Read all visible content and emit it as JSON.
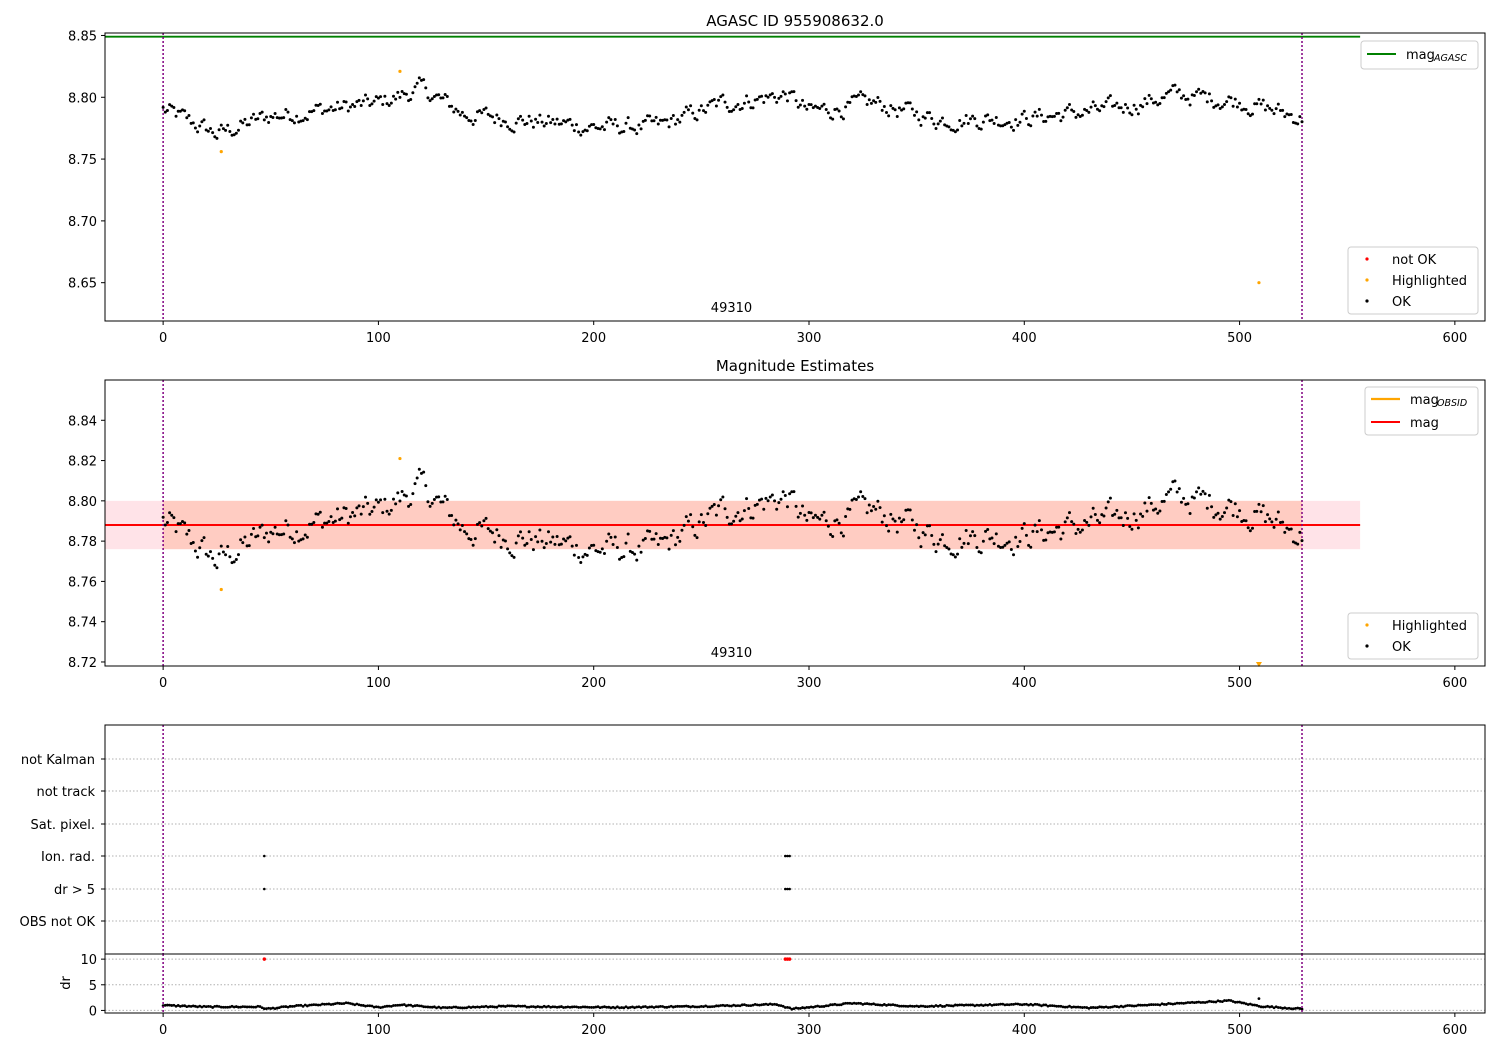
{
  "colors": {
    "ok": "#000000",
    "highlighted": "#ffa500",
    "not_ok": "#ff0000",
    "agasc_line": "#008000",
    "mag_line": "#ff0000",
    "mag_obsid_line": "#ffa500",
    "band_fill": "#ffc0cb",
    "band_fill_inner": "#ffa07a",
    "obs_boundary": "#800080"
  },
  "chart_data": [
    {
      "type": "scatter",
      "title": "AGASC ID 955908632.0",
      "xlim": [
        -27,
        614
      ],
      "ylim": [
        8.619,
        8.852
      ],
      "xticks": [
        0,
        100,
        200,
        300,
        400,
        500,
        600
      ],
      "yticks": [
        8.65,
        8.7,
        8.75,
        8.8,
        8.85
      ],
      "xtick_labels": [
        "0",
        "100",
        "200",
        "300",
        "400",
        "500",
        "600"
      ],
      "ytick_labels": [
        "8.65",
        "8.70",
        "8.75",
        "8.80",
        "8.85"
      ],
      "obs_boundaries": [
        0,
        529
      ],
      "obsid_label": "49310",
      "obsid_label_x": 264,
      "mag_agasc": 8.849,
      "mag_agasc_xrange": [
        -27,
        556
      ],
      "legends": {
        "lines": [
          "mag",
          "AGASC"
        ],
        "points": [
          "not OK",
          "Highlighted",
          "OK"
        ]
      },
      "highlighted": [
        [
          27,
          8.756
        ],
        [
          110,
          8.821
        ],
        [
          509,
          8.65
        ]
      ],
      "ok_envelope": [
        [
          0,
          8.79
        ],
        [
          25,
          8.77
        ],
        [
          50,
          8.785
        ],
        [
          100,
          8.795
        ],
        [
          120,
          8.807
        ],
        [
          140,
          8.786
        ],
        [
          200,
          8.776
        ],
        [
          230,
          8.776
        ],
        [
          260,
          8.795
        ],
        [
          290,
          8.802
        ],
        [
          300,
          8.788
        ],
        [
          330,
          8.795
        ],
        [
          360,
          8.782
        ],
        [
          400,
          8.783
        ],
        [
          440,
          8.79
        ],
        [
          470,
          8.802
        ],
        [
          500,
          8.797
        ],
        [
          529,
          8.783
        ]
      ]
    },
    {
      "type": "scatter",
      "title": "Magnitude Estimates",
      "xlim": [
        -27,
        614
      ],
      "ylim": [
        8.718,
        8.86
      ],
      "xticks": [
        0,
        100,
        200,
        300,
        400,
        500,
        600
      ],
      "yticks": [
        8.72,
        8.74,
        8.76,
        8.78,
        8.8,
        8.82,
        8.84
      ],
      "xtick_labels": [
        "0",
        "100",
        "200",
        "300",
        "400",
        "500",
        "600"
      ],
      "ytick_labels": [
        "8.72",
        "8.74",
        "8.76",
        "8.78",
        "8.80",
        "8.82",
        "8.84"
      ],
      "obs_boundaries": [
        0,
        529
      ],
      "obsid_label": "49310",
      "obsid_label_x": 264,
      "mag": 8.788,
      "mag_band": [
        8.776,
        8.8
      ],
      "mag_band_xrange": [
        -27,
        556
      ],
      "legends": {
        "lines": [
          [
            "mag",
            "OBSID"
          ],
          [
            "mag",
            ""
          ]
        ],
        "points": [
          "Highlighted",
          "OK"
        ]
      },
      "highlighted": [
        [
          27,
          8.756
        ],
        [
          110,
          8.821
        ]
      ],
      "highlighted_offscale": [
        [
          509,
          8.719
        ]
      ]
    },
    {
      "type": "scatter",
      "title": "",
      "xlim": [
        -27,
        614
      ],
      "categories": [
        "not Kalman",
        "not track",
        "Sat. pixel.",
        "Ion. rad.",
        "dr > 5",
        "OBS not OK"
      ],
      "flags": {
        "Ion. rad.": [
          47,
          289,
          290,
          291
        ],
        "dr > 5": [
          47,
          289,
          290,
          291
        ]
      },
      "obs_boundaries": [
        0,
        529
      ]
    },
    {
      "type": "scatter",
      "title": "",
      "ylabel": "dr",
      "xlim": [
        -27,
        614
      ],
      "ylim": [
        -0.5,
        11
      ],
      "yticks": [
        0,
        5,
        10
      ],
      "ytick_labels": [
        "0",
        "5",
        "10"
      ],
      "xticks": [
        0,
        100,
        200,
        300,
        400,
        500,
        600
      ],
      "xtick_labels": [
        "0",
        "100",
        "200",
        "300",
        "400",
        "500",
        "600"
      ],
      "not_ok_markers": [
        47,
        289,
        290,
        291
      ],
      "not_ok_value": 10,
      "dr_envelope": [
        [
          0,
          1.0
        ],
        [
          20,
          0.7
        ],
        [
          45,
          0.7
        ],
        [
          48,
          0.3
        ],
        [
          60,
          0.8
        ],
        [
          85,
          1.4
        ],
        [
          100,
          0.6
        ],
        [
          110,
          1.1
        ],
        [
          130,
          0.5
        ],
        [
          160,
          0.8
        ],
        [
          210,
          0.6
        ],
        [
          250,
          0.8
        ],
        [
          285,
          1.2
        ],
        [
          292,
          0.3
        ],
        [
          320,
          1.4
        ],
        [
          350,
          0.8
        ],
        [
          400,
          1.2
        ],
        [
          430,
          0.5
        ],
        [
          460,
          1.1
        ],
        [
          495,
          1.9
        ],
        [
          510,
          0.8
        ],
        [
          529,
          0.3
        ]
      ],
      "dr_outliers": [
        [
          509,
          2.3
        ]
      ]
    }
  ]
}
